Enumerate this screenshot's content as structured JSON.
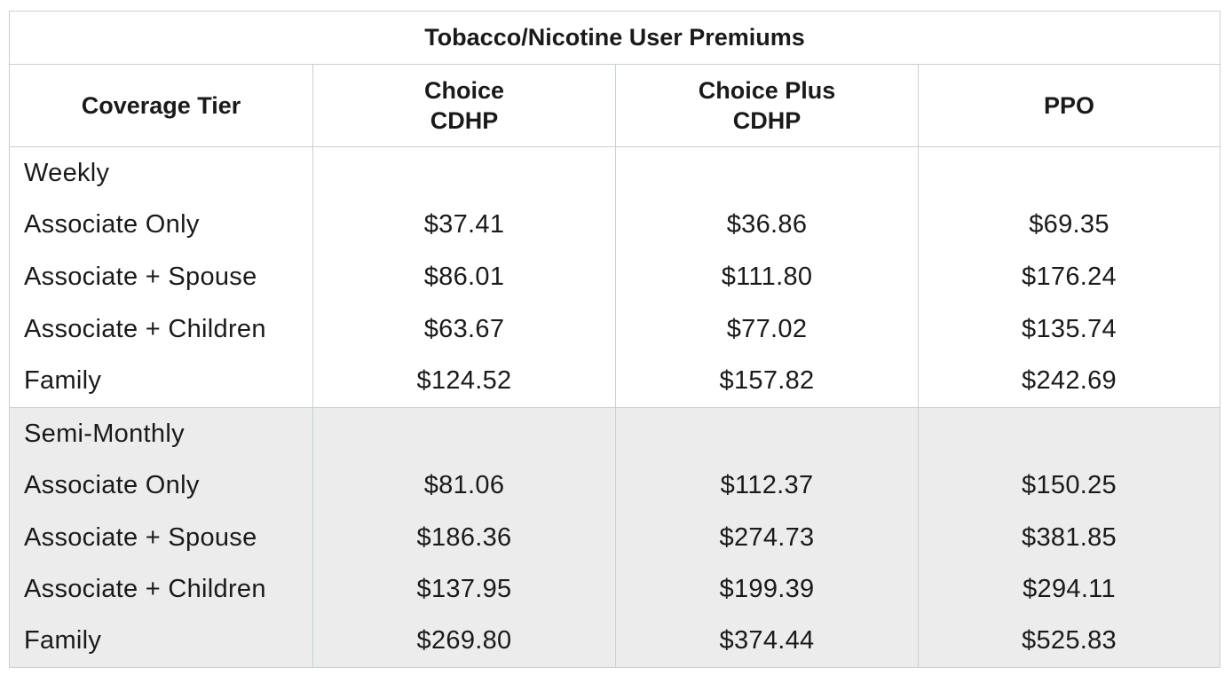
{
  "title": "Tobacco/Nicotine User Premiums",
  "headers": [
    "Coverage Tier",
    "Choice\nCDHP",
    "Choice Plus\nCDHP",
    "PPO"
  ],
  "sections": [
    {
      "name": "Weekly",
      "rows": [
        {
          "tier": "Associate Only",
          "values": [
            "$37.41",
            "$36.86",
            "$69.35"
          ]
        },
        {
          "tier": "Associate + Spouse",
          "values": [
            "$86.01",
            "$111.80",
            "$176.24"
          ]
        },
        {
          "tier": "Associate + Children",
          "values": [
            "$63.67",
            "$77.02",
            "$135.74"
          ]
        },
        {
          "tier": "Family",
          "values": [
            "$124.52",
            "$157.82",
            "$242.69"
          ]
        }
      ]
    },
    {
      "name": "Semi-Monthly",
      "rows": [
        {
          "tier": "Associate Only",
          "values": [
            "$81.06",
            "$112.37",
            "$150.25"
          ]
        },
        {
          "tier": "Associate + Spouse",
          "values": [
            "$186.36",
            "$274.73",
            "$381.85"
          ]
        },
        {
          "tier": "Associate + Children",
          "values": [
            "$137.95",
            "$199.39",
            "$294.11"
          ]
        },
        {
          "tier": "Family",
          "values": [
            "$269.80",
            "$374.44",
            "$525.83"
          ]
        }
      ]
    }
  ],
  "colors": {
    "border": "#c8d0d4",
    "shaded_section": "#ececec",
    "text": "#1a1a1a"
  }
}
